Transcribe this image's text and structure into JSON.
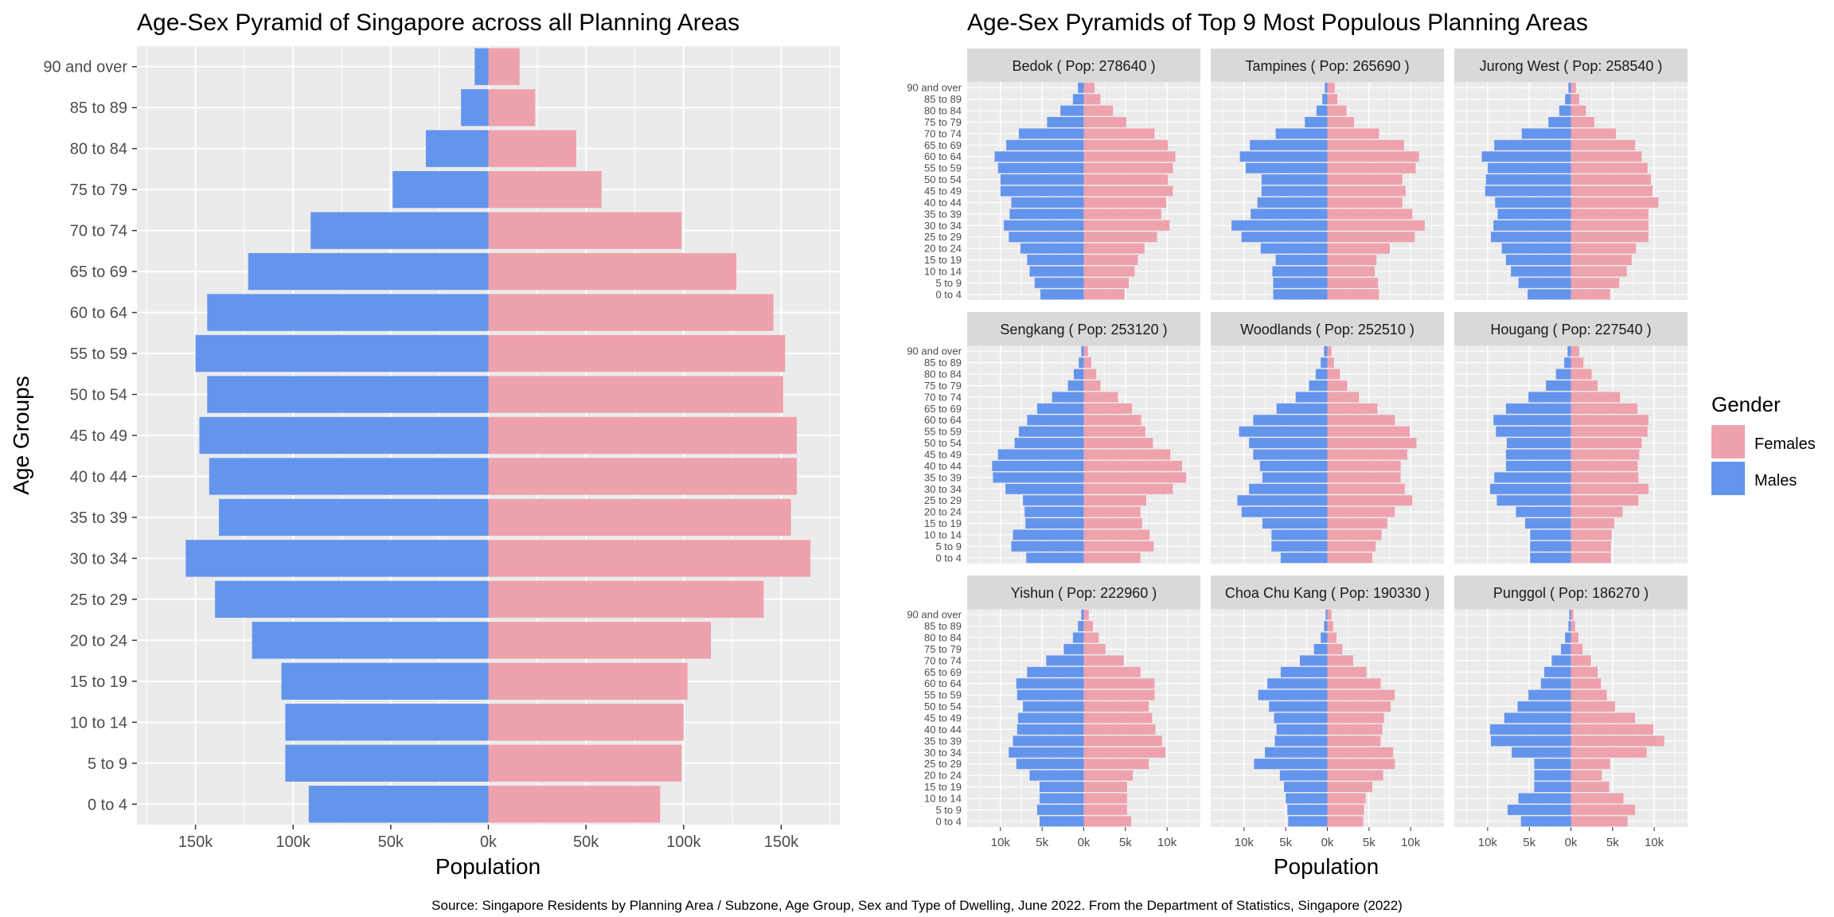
{
  "colors": {
    "female": "#EEA2AD",
    "male": "#6495ED",
    "panel_bg": "#EBEBEB",
    "strip_bg": "#D9D9D9",
    "grid": "#FFFFFF",
    "text": "#000000",
    "tick_text": "#4D4D4D"
  },
  "age_groups": [
    "0 to 4",
    "5 to 9",
    "10 to 14",
    "15 to 19",
    "20 to 24",
    "25 to 29",
    "30 to 34",
    "35 to 39",
    "40 to 44",
    "45 to 49",
    "50 to 54",
    "55 to 59",
    "60 to 64",
    "65 to 69",
    "70 to 74",
    "75 to 79",
    "80 to 84",
    "85 to 89",
    "90 and over"
  ],
  "legend": {
    "title": "Gender",
    "items": [
      {
        "label": "Females",
        "key": "female"
      },
      {
        "label": "Males",
        "key": "male"
      }
    ]
  },
  "caption": "Source: Singapore Residents by Planning Area / Subzone, Age Group, Sex and Type of Dwelling, June 2022. From the Department of Statistics, Singapore (2022)",
  "chart_data": [
    {
      "type": "bar",
      "orientation": "horizontal",
      "title": "Age-Sex Pyramid of Singapore across all Planning Areas",
      "xlabel": "Population",
      "ylabel": "Age Groups",
      "xlim": [
        -180000,
        180000
      ],
      "x_ticks": [
        -150000,
        -100000,
        -50000,
        0,
        50000,
        100000,
        150000
      ],
      "x_tick_labels": [
        "150k",
        "100k",
        "50k",
        "0k",
        "50k",
        "100k",
        "150k"
      ],
      "series": [
        {
          "name": "Females",
          "values": [
            88000,
            99000,
            100000,
            102000,
            114000,
            141000,
            165000,
            155000,
            158000,
            158000,
            151000,
            152000,
            146000,
            127000,
            99000,
            58000,
            45000,
            24000,
            16000
          ]
        },
        {
          "name": "Males",
          "values": [
            92000,
            104000,
            104000,
            106000,
            121000,
            140000,
            155000,
            138000,
            143000,
            148000,
            144000,
            150000,
            144000,
            123000,
            91000,
            49000,
            32000,
            14000,
            7000
          ]
        }
      ]
    },
    {
      "type": "bar",
      "orientation": "horizontal",
      "title": "Age-Sex Pyramids of Top 9 Most Populous Planning Areas",
      "xlabel": "Population",
      "xlim": [
        -14000,
        14000
      ],
      "x_ticks": [
        -10000,
        -5000,
        0,
        5000,
        10000
      ],
      "x_tick_labels": [
        "10k",
        "5k",
        "0k",
        "5k",
        "10k"
      ],
      "panels": [
        {
          "label": "Bedok ( Pop: 278640 )",
          "females": [
            4900,
            5400,
            6100,
            6500,
            7300,
            8800,
            10300,
            9300,
            9900,
            10700,
            10100,
            10700,
            11000,
            10100,
            8500,
            5100,
            3500,
            2000,
            1300
          ],
          "males": [
            5200,
            5900,
            6500,
            6800,
            7600,
            9000,
            9600,
            8900,
            8700,
            10000,
            10000,
            10300,
            10700,
            9300,
            7800,
            4400,
            2800,
            1300,
            700
          ]
        },
        {
          "label": "Tampines ( Pop: 265690 )",
          "females": [
            6200,
            6100,
            5700,
            5900,
            7500,
            10500,
            11700,
            10200,
            9000,
            9400,
            9000,
            10600,
            11000,
            9200,
            6200,
            3200,
            2300,
            1200,
            900
          ]
        },
        {
          "label": "Jurong West ( Pop: 258540 )",
          "females": [
            4700,
            5800,
            6700,
            7300,
            7800,
            9300,
            9300,
            9300,
            10500,
            9800,
            9600,
            9200,
            8500,
            7700,
            5400,
            2800,
            1800,
            1000,
            600
          ]
        },
        {
          "label": "Sengkang ( Pop: 253120 )",
          "females": [
            6800,
            8400,
            7900,
            7000,
            6800,
            7500,
            10700,
            12300,
            11800,
            10400,
            8300,
            7400,
            6900,
            5800,
            4100,
            2000,
            1500,
            900,
            500
          ]
        },
        {
          "label": "Woodlands ( Pop: 252510 )",
          "females": [
            5400,
            5800,
            6500,
            7200,
            8100,
            10200,
            9300,
            8800,
            8800,
            9600,
            10700,
            9900,
            8100,
            6000,
            3800,
            2400,
            1500,
            800,
            500
          ]
        },
        {
          "label": "Hougang ( Pop: 227540 )",
          "females": [
            4800,
            4800,
            4900,
            5200,
            6200,
            8100,
            9300,
            8100,
            8000,
            8200,
            8500,
            9200,
            9300,
            8000,
            5900,
            3200,
            2500,
            1500,
            1000
          ]
        },
        {
          "label": "Yishun ( Pop: 222960 )",
          "females": [
            5700,
            5200,
            5200,
            5200,
            5900,
            7800,
            9800,
            9400,
            8600,
            8200,
            7800,
            8500,
            8500,
            6800,
            4800,
            2600,
            1800,
            1100,
            600
          ]
        },
        {
          "label": "Choa Chu Kang ( Pop: 190330 )",
          "females": [
            4300,
            4400,
            4600,
            5400,
            6700,
            8100,
            7900,
            6400,
            6600,
            6800,
            7600,
            8100,
            6400,
            4700,
            3100,
            1800,
            1100,
            700,
            500
          ]
        },
        {
          "label": "Punggol ( Pop: 186270 )",
          "females": [
            6800,
            7700,
            6300,
            4600,
            3700,
            4700,
            9100,
            11200,
            9900,
            7700,
            5300,
            4300,
            3600,
            3200,
            2400,
            1400,
            900,
            500,
            300
          ]
        }
      ],
      "panel_males": [
        [
          5200,
          5900,
          6500,
          6800,
          7600,
          9000,
          9600,
          8900,
          8700,
          10000,
          10000,
          10300,
          10700,
          9300,
          7800,
          4400,
          2800,
          1300,
          700
        ],
        [
          6500,
          6500,
          6600,
          6200,
          8000,
          10300,
          11500,
          9200,
          8400,
          7900,
          7900,
          9800,
          10500,
          9300,
          6200,
          2700,
          1300,
          600,
          300
        ],
        [
          5200,
          6300,
          7200,
          7800,
          8300,
          9600,
          9300,
          8800,
          9100,
          10300,
          10200,
          10000,
          10700,
          9200,
          5900,
          2700,
          1400,
          700,
          300
        ],
        [
          6900,
          8700,
          8500,
          7000,
          7100,
          7300,
          9400,
          10900,
          11000,
          10300,
          8300,
          7800,
          6800,
          5600,
          3800,
          1900,
          1200,
          600,
          300
        ],
        [
          5600,
          6700,
          6700,
          7800,
          10300,
          10800,
          9400,
          7800,
          8100,
          8900,
          9400,
          10600,
          8900,
          6100,
          3800,
          2200,
          1400,
          800,
          400
        ],
        [
          4900,
          4900,
          4900,
          5500,
          6600,
          8900,
          9700,
          9200,
          7800,
          7800,
          7700,
          9000,
          9300,
          7800,
          5100,
          3000,
          1800,
          800,
          400
        ],
        [
          5300,
          5600,
          5300,
          5300,
          6500,
          8100,
          9000,
          8500,
          8000,
          7900,
          7300,
          8000,
          8100,
          6800,
          4500,
          2400,
          1300,
          700,
          300
        ],
        [
          4700,
          4800,
          5000,
          5200,
          5700,
          8800,
          7500,
          6300,
          6100,
          6400,
          7000,
          8300,
          7200,
          5600,
          3300,
          1600,
          800,
          400,
          200
        ],
        [
          6000,
          7600,
          6300,
          4400,
          4400,
          4400,
          7100,
          9600,
          9700,
          8000,
          6400,
          5100,
          3600,
          3200,
          2300,
          1200,
          700,
          300,
          200
        ]
      ]
    }
  ]
}
